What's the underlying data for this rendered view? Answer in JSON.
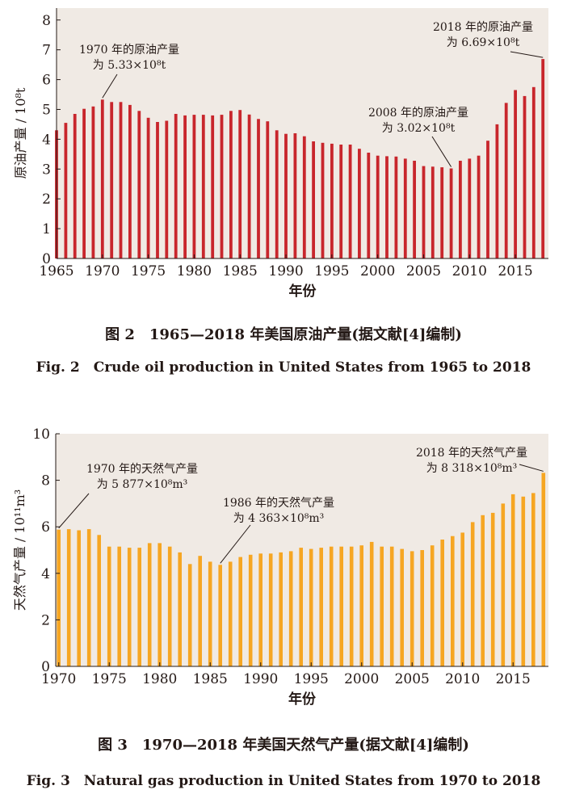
{
  "colors": {
    "oil_bar": "#c8262c",
    "gas_bar": "#f6a623",
    "panel_bg": "#f0eae4",
    "text": "#231815"
  },
  "captions": {
    "fig2_cn": "图 2　1965—2018 年美国原油产量(据文献[4]编制)",
    "fig2_en": "Fig. 2　Crude oil production in United States from 1965 to 2018",
    "fig3_cn": "图 3　1970—2018 年美国天然气产量(据文献[4]编制)",
    "fig3_en": "Fig. 3　Natural gas production in United States from 1970 to 2018"
  },
  "chart_data": [
    {
      "type": "bar",
      "xlabel": "年份",
      "ylabel": "原油产量 / 10⁸t",
      "ylim": [
        0,
        8.4
      ],
      "y_ticks": [
        0,
        1,
        2,
        3,
        4,
        5,
        6,
        7,
        8
      ],
      "x_ticks": [
        1965,
        1970,
        1975,
        1980,
        1985,
        1990,
        1995,
        2000,
        2005,
        2010,
        2015
      ],
      "x": [
        1965,
        1966,
        1967,
        1968,
        1969,
        1970,
        1971,
        1972,
        1973,
        1974,
        1975,
        1976,
        1977,
        1978,
        1979,
        1980,
        1981,
        1982,
        1983,
        1984,
        1985,
        1986,
        1987,
        1988,
        1989,
        1990,
        1991,
        1992,
        1993,
        1994,
        1995,
        1996,
        1997,
        1998,
        1999,
        2000,
        2001,
        2002,
        2003,
        2004,
        2005,
        2006,
        2007,
        2008,
        2009,
        2010,
        2011,
        2012,
        2013,
        2014,
        2015,
        2016,
        2017,
        2018
      ],
      "values": [
        4.3,
        4.55,
        4.85,
        5.02,
        5.1,
        5.33,
        5.25,
        5.25,
        5.15,
        4.95,
        4.72,
        4.58,
        4.62,
        4.85,
        4.8,
        4.82,
        4.82,
        4.8,
        4.82,
        4.95,
        4.98,
        4.83,
        4.68,
        4.6,
        4.3,
        4.18,
        4.2,
        4.1,
        3.93,
        3.88,
        3.85,
        3.82,
        3.82,
        3.68,
        3.55,
        3.45,
        3.43,
        3.42,
        3.35,
        3.28,
        3.1,
        3.08,
        3.06,
        3.02,
        3.28,
        3.35,
        3.45,
        3.95,
        4.5,
        5.22,
        5.65,
        5.45,
        5.75,
        6.69
      ],
      "annotations": [
        {
          "line1": "1970 年的原油产量",
          "line2": "为 5.33×10⁸t",
          "x": 1970,
          "y": 5.33
        },
        {
          "line1": "2008 年的原油产量",
          "line2": "为 3.02×10⁸t",
          "x": 2008,
          "y": 3.02
        },
        {
          "line1": "2018 年的原油产量",
          "line2": "为 6.69×10⁸t",
          "x": 2018,
          "y": 6.69
        }
      ]
    },
    {
      "type": "bar",
      "xlabel": "年份",
      "ylabel": "天然气产量 / 10¹¹m³",
      "ylim": [
        0,
        10
      ],
      "y_ticks": [
        0,
        2,
        4,
        6,
        8,
        10
      ],
      "x_ticks": [
        1970,
        1975,
        1980,
        1985,
        1990,
        1995,
        2000,
        2005,
        2010,
        2015
      ],
      "x": [
        1970,
        1971,
        1972,
        1973,
        1974,
        1975,
        1976,
        1977,
        1978,
        1979,
        1980,
        1981,
        1982,
        1983,
        1984,
        1985,
        1986,
        1987,
        1988,
        1989,
        1990,
        1991,
        1992,
        1993,
        1994,
        1995,
        1996,
        1997,
        1998,
        1999,
        2000,
        2001,
        2002,
        2003,
        2004,
        2005,
        2006,
        2007,
        2008,
        2009,
        2010,
        2011,
        2012,
        2013,
        2014,
        2015,
        2016,
        2017,
        2018
      ],
      "values": [
        5.877,
        5.9,
        5.85,
        5.9,
        5.65,
        5.15,
        5.15,
        5.1,
        5.1,
        5.3,
        5.3,
        5.15,
        4.9,
        4.4,
        4.75,
        4.5,
        4.363,
        4.5,
        4.7,
        4.8,
        4.85,
        4.85,
        4.9,
        4.95,
        5.1,
        5.05,
        5.1,
        5.15,
        5.15,
        5.15,
        5.2,
        5.35,
        5.15,
        5.15,
        5.05,
        4.95,
        5.0,
        5.2,
        5.45,
        5.6,
        5.75,
        6.2,
        6.5,
        6.6,
        7.0,
        7.4,
        7.3,
        7.45,
        8.318
      ],
      "annotations": [
        {
          "line1": "1970 年的天然气产量",
          "line2": "为 5 877×10⁸m³",
          "x": 1970,
          "y": 5.877
        },
        {
          "line1": "1986 年的天然气产量",
          "line2": "为 4 363×10⁸m³",
          "x": 1986,
          "y": 4.363
        },
        {
          "line1": "2018 年的天然气产量",
          "line2": "为 8 318×10⁸m³",
          "x": 2018,
          "y": 8.318
        }
      ]
    }
  ]
}
